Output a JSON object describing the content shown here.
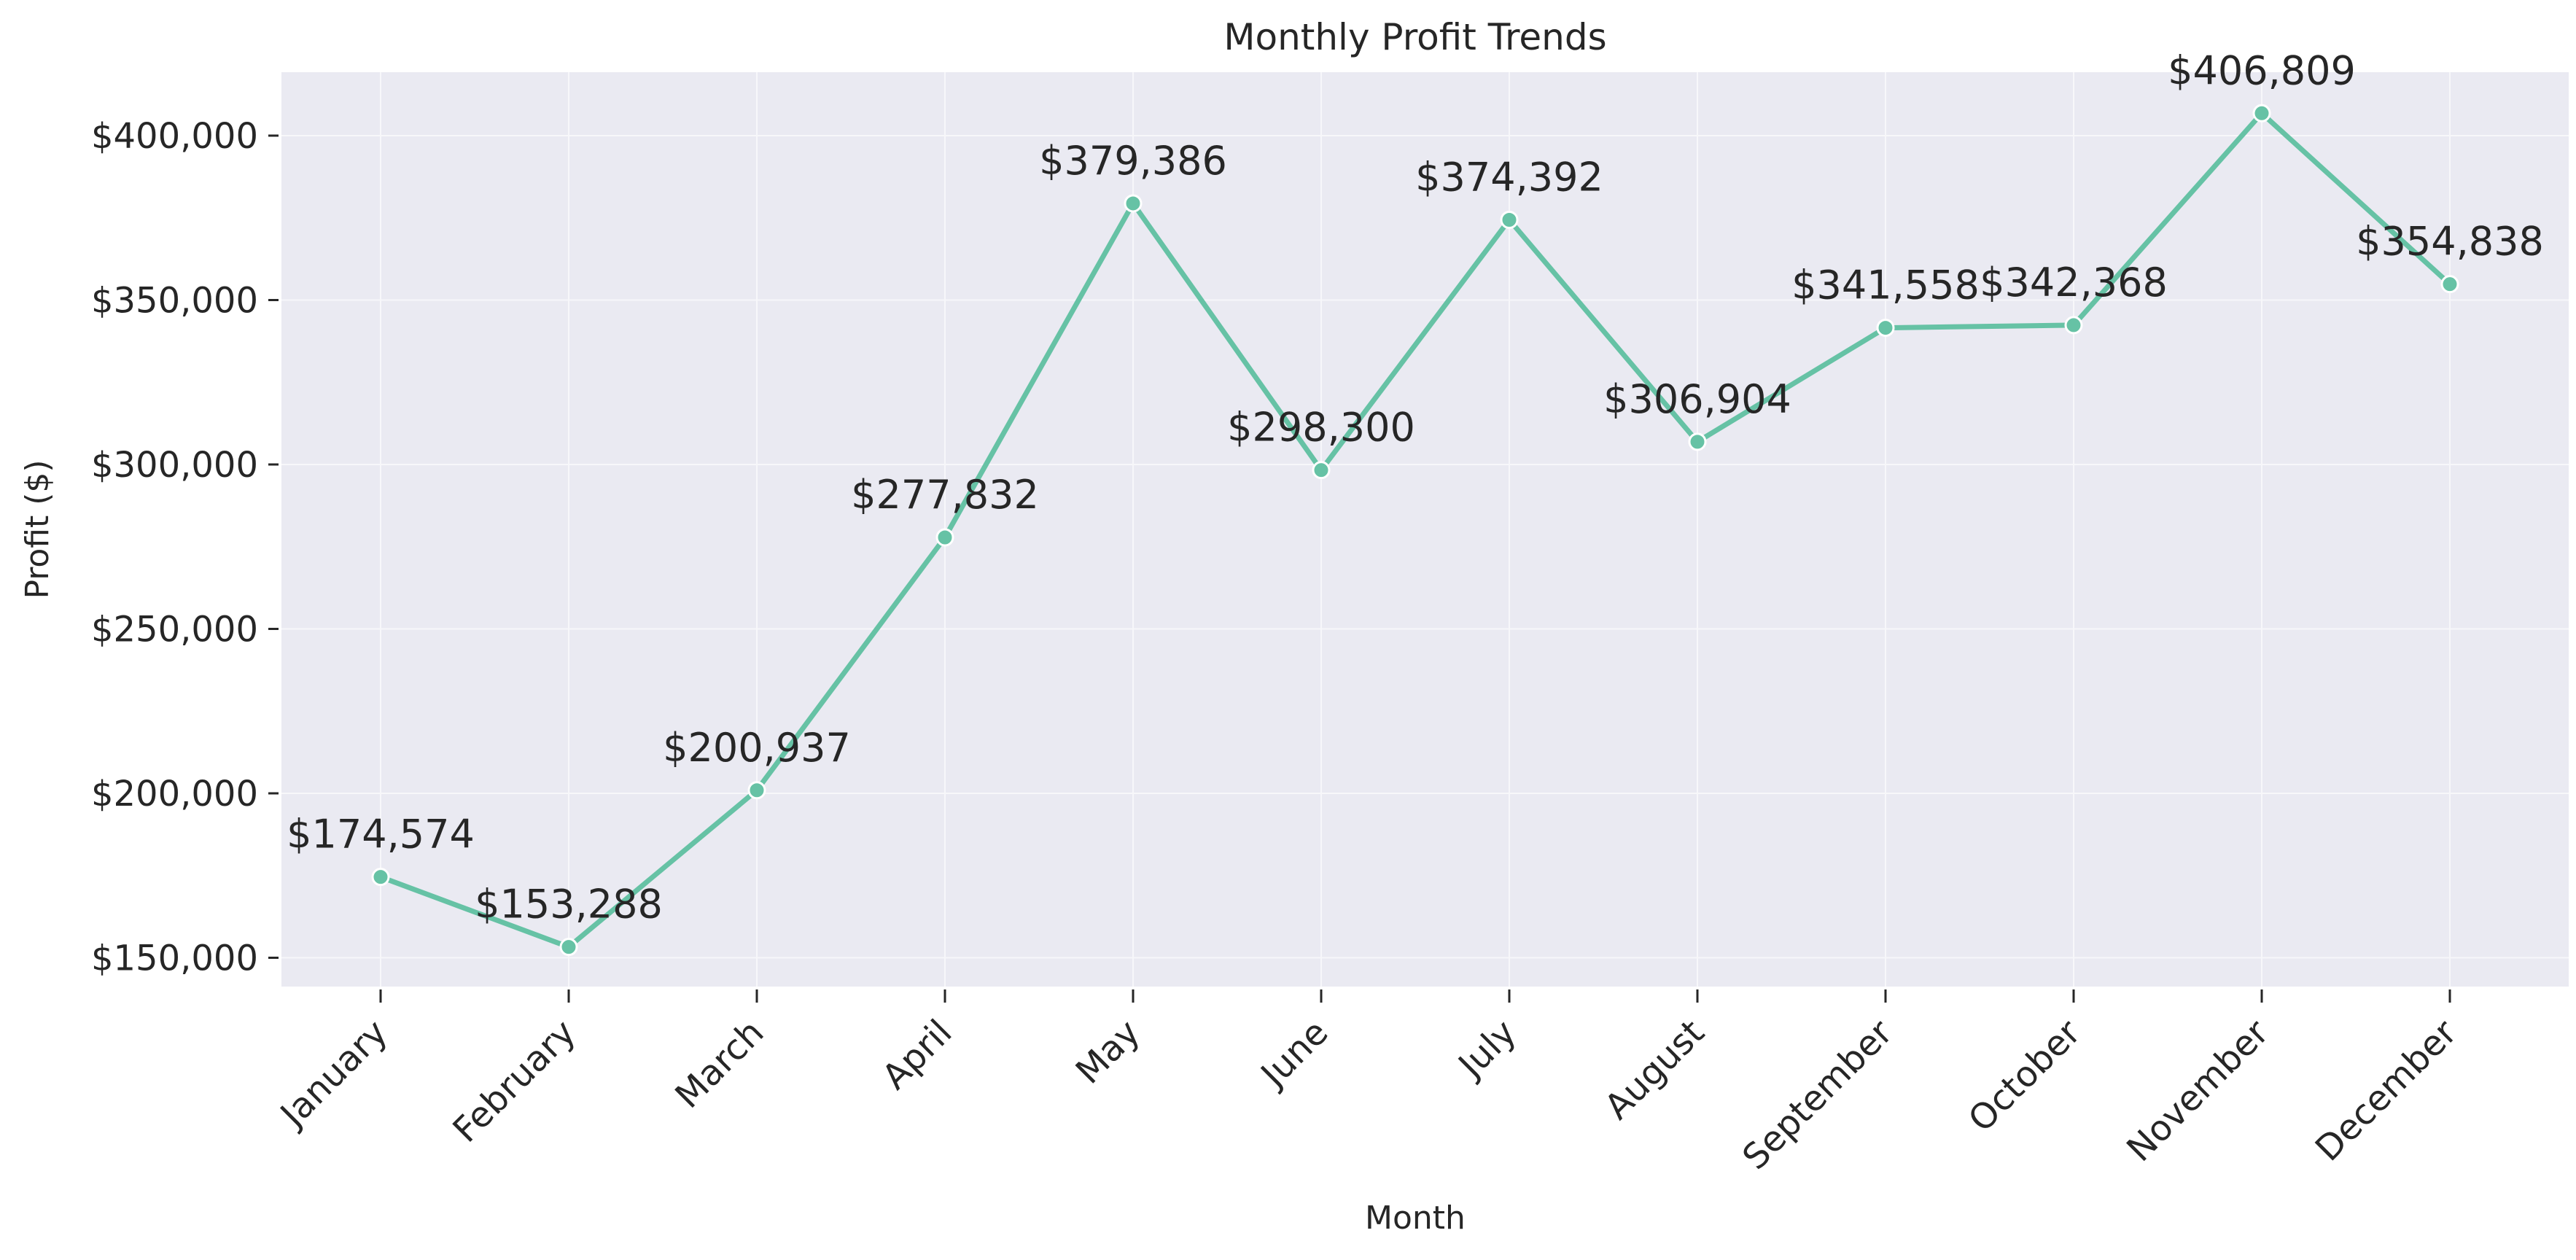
{
  "chart_data": {
    "type": "line",
    "title": "Monthly Profit Trends",
    "xlabel": "Month",
    "ylabel": "Profit ($)",
    "categories": [
      "January",
      "February",
      "March",
      "April",
      "May",
      "June",
      "July",
      "August",
      "September",
      "October",
      "November",
      "December"
    ],
    "series": [
      {
        "name": "Profit",
        "values": [
          174574,
          153288,
          200937,
          277832,
          379386,
          298300,
          374392,
          306904,
          341558,
          342368,
          406809,
          354838
        ],
        "labels": [
          "$174,574",
          "$153,288",
          "$200,937",
          "$277,832",
          "$379,386",
          "$298,300",
          "$374,392",
          "$306,904",
          "$341,558",
          "$342,368",
          "$406,809",
          "$354,838"
        ]
      }
    ],
    "yticks": [
      150000,
      200000,
      250000,
      300000,
      350000,
      400000
    ],
    "ytick_labels": [
      "$150,000",
      "$200,000",
      "$250,000",
      "$300,000",
      "$350,000",
      "$400,000"
    ],
    "ylim": [
      140000,
      420000
    ],
    "grid": true,
    "line_color": "#66c2a5",
    "plot_background": "#eaeaf2"
  }
}
